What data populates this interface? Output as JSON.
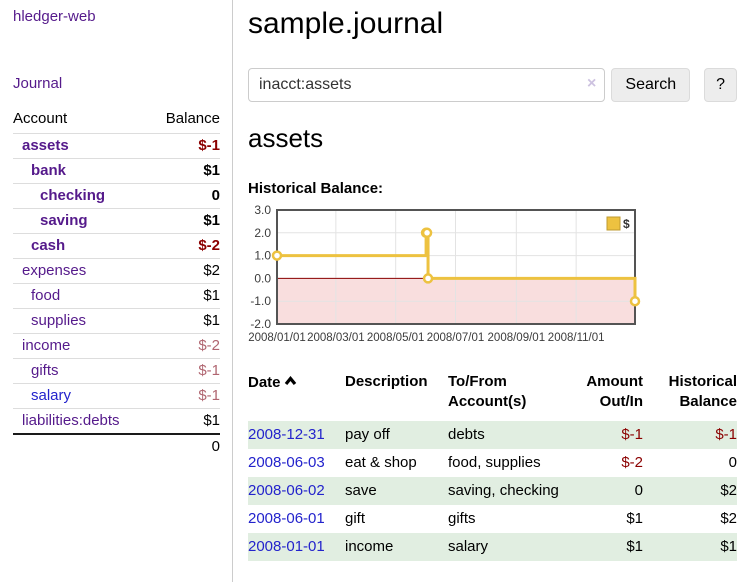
{
  "brand": "hledger-web",
  "nav": {
    "journal": "Journal"
  },
  "sidebar": {
    "col_account": "Account",
    "col_balance": "Balance",
    "accounts": [
      {
        "name": "assets",
        "balance": "$-1",
        "indent": 1,
        "bold": true,
        "balance_class": "neg-strong",
        "link": "purple"
      },
      {
        "name": "bank",
        "balance": "$1",
        "indent": 2,
        "bold": true,
        "balance_class": "",
        "link": "purple"
      },
      {
        "name": "checking",
        "balance": "0",
        "indent": 3,
        "bold": true,
        "balance_class": "",
        "link": "purple"
      },
      {
        "name": "saving",
        "balance": "$1",
        "indent": 3,
        "bold": true,
        "balance_class": "",
        "link": "purple"
      },
      {
        "name": "cash",
        "balance": "$-2",
        "indent": 2,
        "bold": true,
        "balance_class": "neg-strong",
        "link": "purple"
      },
      {
        "name": "expenses",
        "balance": "$2",
        "indent": 1,
        "bold": false,
        "balance_class": "",
        "link": "purple"
      },
      {
        "name": "food",
        "balance": "$1",
        "indent": 2,
        "bold": false,
        "balance_class": "",
        "link": "purple"
      },
      {
        "name": "supplies",
        "balance": "$1",
        "indent": 2,
        "bold": false,
        "balance_class": "",
        "link": "purple"
      },
      {
        "name": "income",
        "balance": "$-2",
        "indent": 1,
        "bold": false,
        "balance_class": "neg-soft",
        "link": "purple"
      },
      {
        "name": "gifts",
        "balance": "$-1",
        "indent": 2,
        "bold": false,
        "balance_class": "neg-soft",
        "link": "purple"
      },
      {
        "name": "salary",
        "balance": "$-1",
        "indent": 2,
        "bold": false,
        "balance_class": "neg-soft",
        "link": "blue"
      },
      {
        "name": "liabilities:debts",
        "balance": "$1",
        "indent": 1,
        "bold": false,
        "balance_class": "",
        "link": "purple"
      }
    ],
    "total": "0"
  },
  "header": {
    "title": "sample.journal"
  },
  "search": {
    "value": "inacct:assets",
    "clear_icon": "×",
    "button_label": "Search",
    "help_label": "?"
  },
  "account_page": {
    "heading": "assets",
    "chart_title": "Historical Balance:"
  },
  "register": {
    "headers": {
      "date": "Date",
      "description": "Description",
      "tofrom": "To/From Account(s)",
      "amount": "Amount Out/In",
      "balance": "Historical Balance"
    },
    "rows": [
      {
        "date": "2008-12-31",
        "description": "pay off",
        "accounts": "debts",
        "amount": "$-1",
        "amount_neg": true,
        "balance": "$-1",
        "balance_neg": true,
        "shaded": true
      },
      {
        "date": "2008-06-03",
        "description": "eat & shop",
        "accounts": "food, supplies",
        "amount": "$-2",
        "amount_neg": true,
        "balance": "0",
        "balance_neg": false,
        "shaded": false
      },
      {
        "date": "2008-06-02",
        "description": "save",
        "accounts": "saving, checking",
        "amount": "0",
        "amount_neg": false,
        "balance": "$2",
        "balance_neg": false,
        "shaded": true
      },
      {
        "date": "2008-06-01",
        "description": "gift",
        "accounts": "gifts",
        "amount": "$1",
        "amount_neg": false,
        "balance": "$2",
        "balance_neg": false,
        "shaded": false
      },
      {
        "date": "2008-01-01",
        "description": "income",
        "accounts": "salary",
        "amount": "$1",
        "amount_neg": false,
        "balance": "$1",
        "balance_neg": false,
        "shaded": true
      }
    ]
  },
  "chart_data": {
    "type": "line",
    "step": true,
    "title": "Historical Balance",
    "series": [
      {
        "name": "$",
        "color": "#EDC240",
        "points": [
          [
            "2008-01-01",
            1
          ],
          [
            "2008-06-01",
            2
          ],
          [
            "2008-06-02",
            2
          ],
          [
            "2008-06-03",
            0
          ],
          [
            "2008-12-31",
            -1
          ]
        ]
      }
    ],
    "x_ticks": [
      "2008/01/01",
      "2008/03/01",
      "2008/05/01",
      "2008/07/01",
      "2008/09/01",
      "2008/11/01"
    ],
    "y_ticks": [
      "3.0",
      "2.0",
      "1.0",
      "0.0",
      "-1.0",
      "-2.0"
    ],
    "ylim": [
      -2,
      3
    ],
    "x_range": [
      "2008-01-01",
      "2008-12-31"
    ],
    "legend": {
      "label": "$",
      "position": "top-right"
    },
    "colors": {
      "zero_line": "#8b0000",
      "negative_fill": "#f9dede",
      "grid": "#e3e3e3",
      "border": "#545454",
      "marker_fill": "#ffffff"
    }
  }
}
